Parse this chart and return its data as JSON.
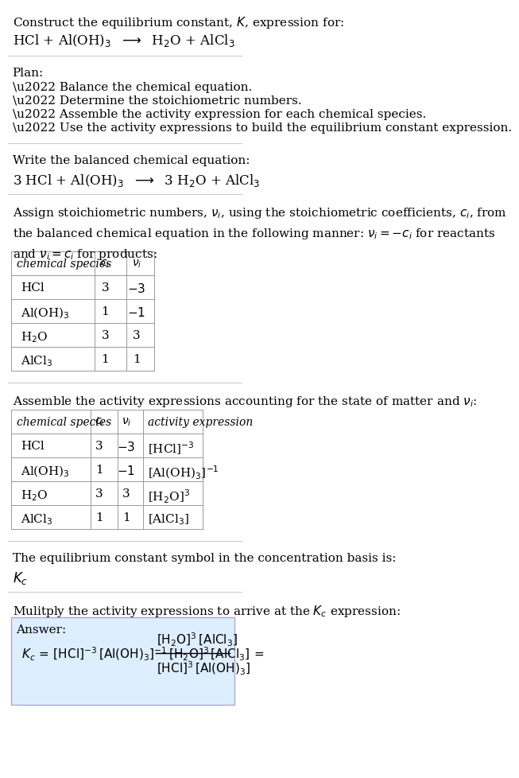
{
  "bg_color": "#ffffff",
  "text_color": "#000000",
  "font_size": 11,
  "title_line1": "Construct the equilibrium constant, $K$, expression for:",
  "title_line2": "HCl + Al(OH)$_3$  $\\longrightarrow$  H$_2$O + AlCl$_3$",
  "plan_header": "Plan:",
  "plan_bullets": [
    "\\u2022 Balance the chemical equation.",
    "\\u2022 Determine the stoichiometric numbers.",
    "\\u2022 Assemble the activity expression for each chemical species.",
    "\\u2022 Use the activity expressions to build the equilibrium constant expression."
  ],
  "balanced_header": "Write the balanced chemical equation:",
  "balanced_eq": "3 HCl + Al(OH)$_3$  $\\longrightarrow$  3 H$_2$O + AlCl$_3$",
  "stoich_intro": "Assign stoichiometric numbers, $\\nu_i$, using the stoichiometric coefficients, $c_i$, from\nthe balanced chemical equation in the following manner: $\\nu_i = -c_i$ for reactants\nand $\\nu_i = c_i$ for products:",
  "table1_headers": [
    "chemical species",
    "$c_i$",
    "$\\nu_i$"
  ],
  "table1_rows": [
    [
      "HCl",
      "3",
      "$-3$"
    ],
    [
      "Al(OH)$_3$",
      "1",
      "$-1$"
    ],
    [
      "H$_2$O",
      "3",
      "3"
    ],
    [
      "AlCl$_3$",
      "1",
      "1"
    ]
  ],
  "activity_intro": "Assemble the activity expressions accounting for the state of matter and $\\nu_i$:",
  "table2_headers": [
    "chemical species",
    "$c_i$",
    "$\\nu_i$",
    "activity expression"
  ],
  "table2_rows": [
    [
      "HCl",
      "3",
      "$-3$",
      "[HCl]$^{-3}$"
    ],
    [
      "Al(OH)$_3$",
      "1",
      "$-1$",
      "[Al(OH)$_3$]$^{-1}$"
    ],
    [
      "H$_2$O",
      "3",
      "3",
      "[H$_2$O]$^3$"
    ],
    [
      "AlCl$_3$",
      "1",
      "1",
      "[AlCl$_3$]"
    ]
  ],
  "kc_intro": "The equilibrium constant symbol in the concentration basis is:",
  "kc_symbol": "$K_c$",
  "multiply_intro": "Mulitply the activity expressions to arrive at the $K_c$ expression:",
  "answer_label": "Answer:",
  "answer_box_color": "#ddeeff",
  "answer_line1": "$K_c = $ [HCl]$^{-3}$ [Al(OH)$_3$]$^{-1}$ [H$_2$O]$^3$ [AlCl$_3$] $= \\dfrac{[\\mathrm{H_2O}]^3\\,[\\mathrm{AlCl_3}]}{[\\mathrm{HCl}]^3\\,[\\mathrm{Al(OH)_3}]}$"
}
